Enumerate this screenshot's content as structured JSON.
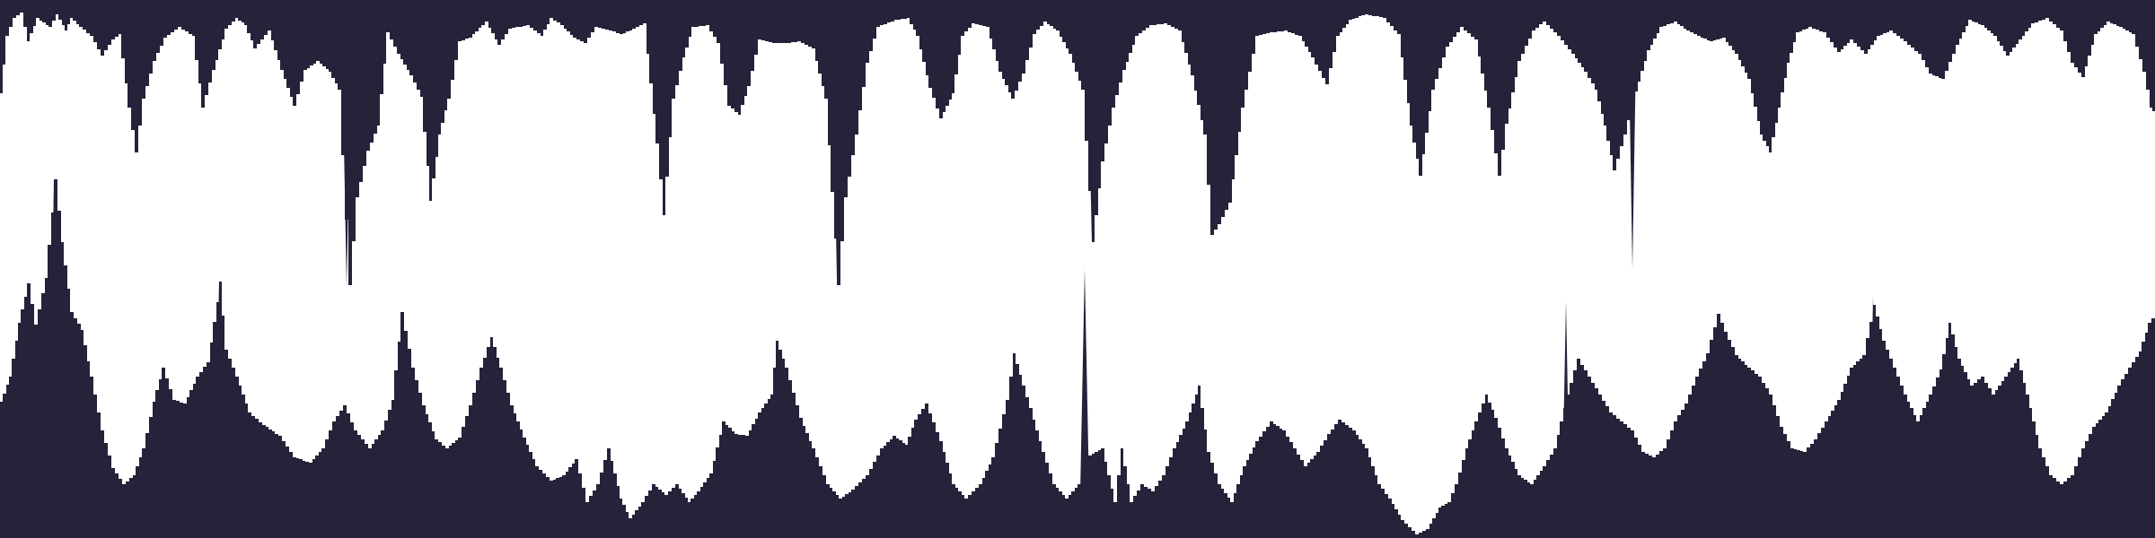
{
  "scene": {
    "name": "cave-terrain-view",
    "colors": {
      "rock": "#24233a",
      "open_space": "#ffffff"
    }
  }
}
